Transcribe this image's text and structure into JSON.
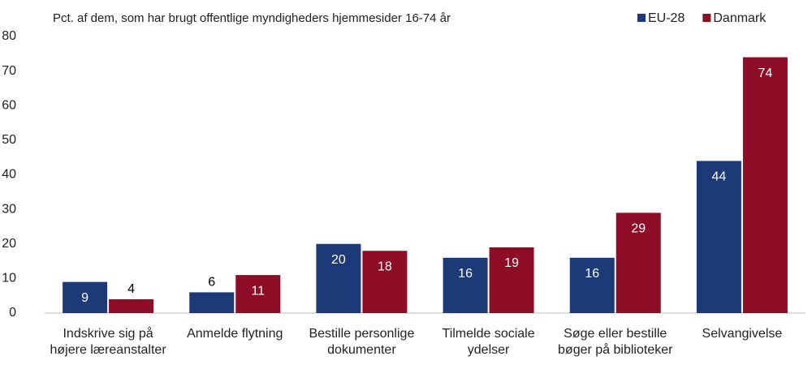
{
  "chart_data": {
    "type": "bar",
    "title": "Pct. af dem, som har brugt offentlige myndigheders hjemmesider 16-74 år",
    "categories": [
      "Indskrive sig på højere læreanstalter",
      "Anmelde flytning",
      "Bestille personlige dokumenter",
      "Tilmelde sociale ydelser",
      "Søge eller bestille bøger på biblioteker",
      "Selvangivelse"
    ],
    "series": [
      {
        "name": "EU-28",
        "color": "#1c3a78",
        "values": [
          9,
          6,
          20,
          16,
          16,
          44
        ]
      },
      {
        "name": "Danmark",
        "color": "#8c0d25",
        "values": [
          4,
          11,
          18,
          19,
          29,
          74
        ]
      }
    ],
    "ylim": [
      0,
      80
    ],
    "yticks": [
      0,
      10,
      20,
      30,
      40,
      50,
      60,
      70,
      80
    ],
    "legend": "top-right"
  }
}
